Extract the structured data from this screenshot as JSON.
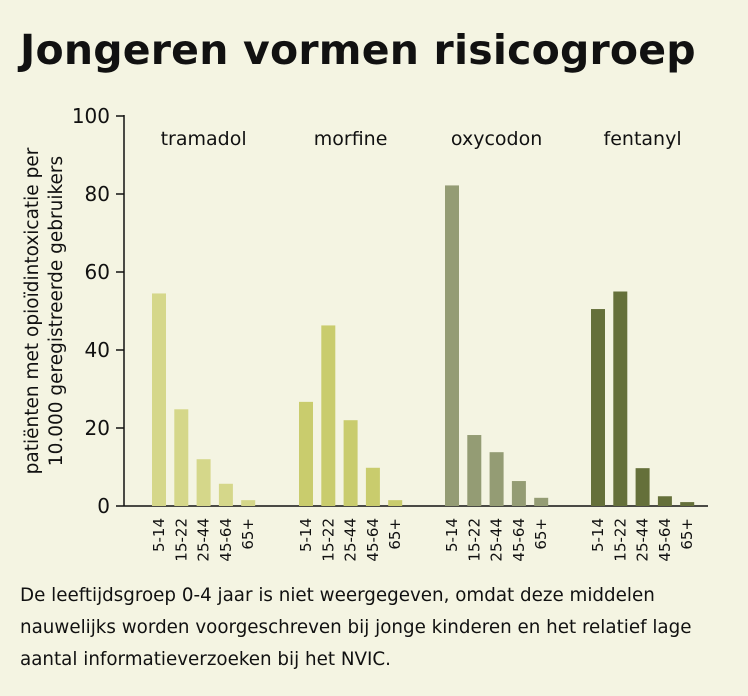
{
  "title": "Jongeren vormen risicogroep",
  "footnote": "De leeftijdsgroep 0-4 jaar is niet weergegeven, omdat deze middelen nauwelijks worden voorgeschreven bij jonge kinderen en het relatief lage aantal informatieverzoeken bij het NVIC.",
  "chart_data": {
    "type": "bar",
    "ylabel_lines": [
      "patiënten met opioïdintoxicatie per",
      "10.000 geregistreerde gebruikers"
    ],
    "ylim": [
      0,
      100
    ],
    "yticks": [
      0,
      20,
      40,
      60,
      80,
      100
    ],
    "grid": false,
    "age_groups": [
      "5-14",
      "15-22",
      "25-44",
      "45-64",
      "65+"
    ],
    "groups": [
      {
        "name": "tramadol",
        "color": "#d5d78a",
        "values": [
          54.5,
          24.8,
          12,
          5.7,
          1.5
        ]
      },
      {
        "name": "morfine",
        "color": "#c9cc6d",
        "values": [
          26.7,
          46.3,
          22,
          9.8,
          1.5
        ]
      },
      {
        "name": "oxycodon",
        "color": "#949c74",
        "values": [
          82.2,
          18.2,
          13.8,
          6.4,
          2.1
        ]
      },
      {
        "name": "fentanyl",
        "color": "#65703a",
        "values": [
          50.5,
          55,
          9.7,
          2.5,
          1
        ]
      }
    ]
  }
}
